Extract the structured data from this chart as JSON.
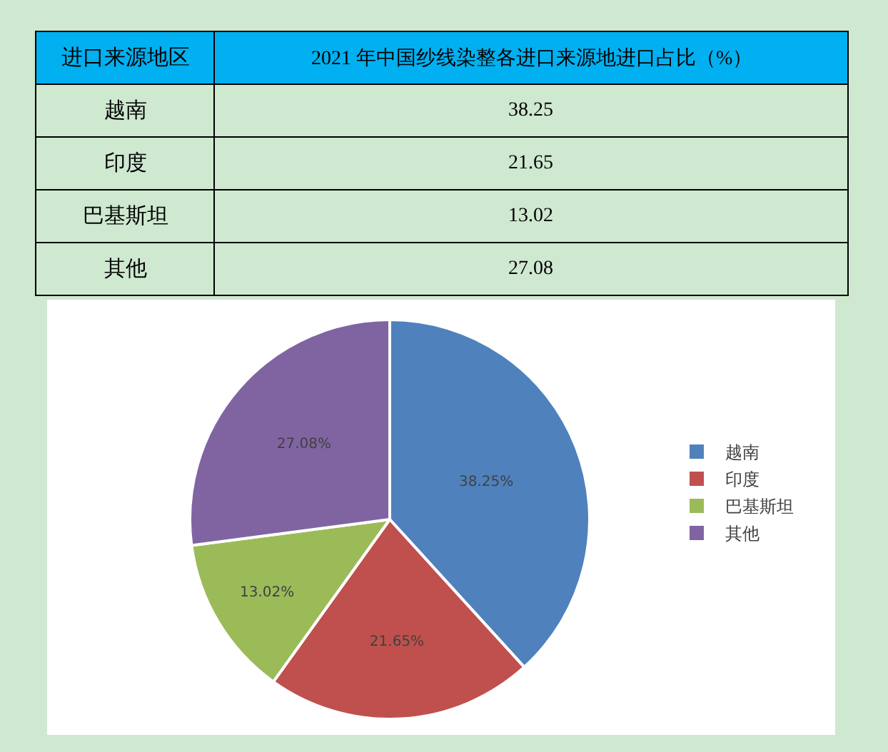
{
  "chart_data": {
    "type": "pie",
    "title": "2021 年中国纱线染整各进口来源地进口占比（%）",
    "annotations": [
      "进口来源地区",
      "38.25",
      "21.65",
      "13.02",
      "27.08"
    ],
    "categories": [
      "越南",
      "印度",
      "巴基斯坦",
      "其他"
    ],
    "values": [
      38.25,
      21.65,
      13.02,
      27.08
    ],
    "colors": [
      "#4f81bd",
      "#c0504d",
      "#9bbb59",
      "#8064a2"
    ],
    "value_labels": [
      "38.25%",
      "21.65%",
      "13.02%",
      "27.08%"
    ],
    "legend": "right"
  }
}
